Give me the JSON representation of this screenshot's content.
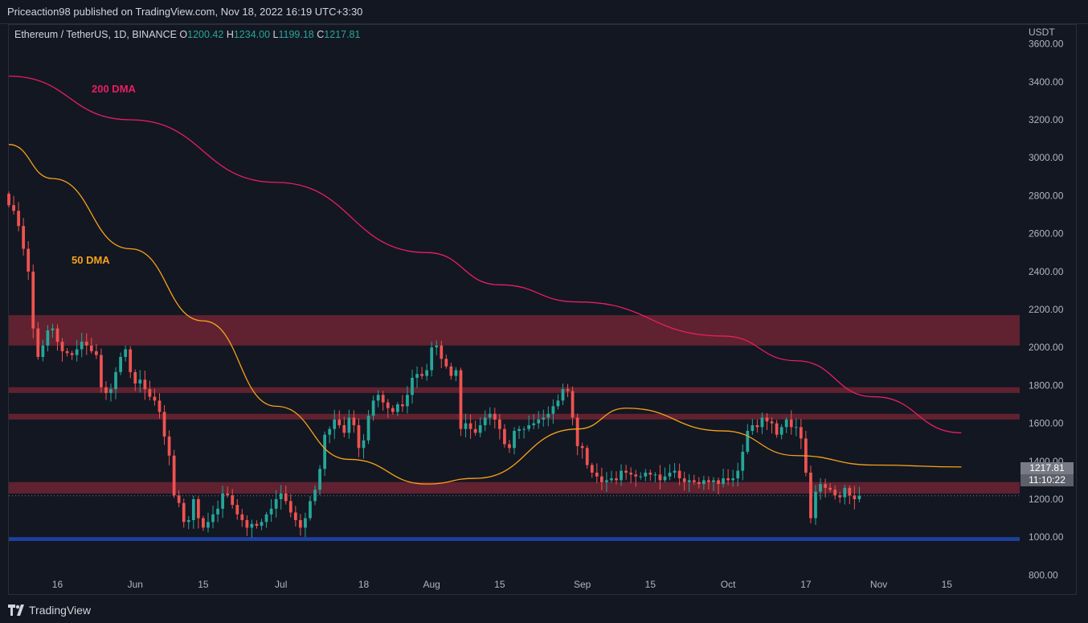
{
  "header": {
    "published_by": "Priceaction98 published on TradingView.com, Nov 18, 2022 16:19 UTC+3:30"
  },
  "legend": {
    "symbol": "Ethereum / TetherUS, 1D, BINANCE",
    "open_label": "O",
    "open": "1200.42",
    "high_label": "H",
    "high": "1234.00",
    "low_label": "L",
    "low": "1199.18",
    "close_label": "C",
    "close": "1217.81"
  },
  "indicators": {
    "dma200_label": "200 DMA",
    "dma50_label": "50 DMA"
  },
  "price_tag": {
    "price": "1217.81",
    "countdown": "11:10:22"
  },
  "footer": {
    "brand": "TradingView"
  },
  "colors": {
    "background": "#131722",
    "up": "#26a69a",
    "down": "#ef5350",
    "dma200": "#e91e63",
    "dma50": "#f7a21b",
    "zone": "#6e2432",
    "support_line": "#2962ff"
  },
  "chart_data": {
    "type": "candlestick",
    "y_unit": "USDT",
    "ylim": [
      700,
      3700
    ],
    "y_ticks": [
      "3600.00",
      "3400.00",
      "3200.00",
      "3000.00",
      "2800.00",
      "2600.00",
      "2400.00",
      "2200.00",
      "2000.00",
      "1800.00",
      "1600.00",
      "1400.00",
      "1200.00",
      "1000.00",
      "800.00"
    ],
    "y_tick_values": [
      3600,
      3400,
      3200,
      3000,
      2800,
      2600,
      2400,
      2200,
      2000,
      1800,
      1600,
      1400,
      1200,
      1000,
      800
    ],
    "x_range": [
      "2022-05-06",
      "2022-11-30"
    ],
    "x_ticks": [
      {
        "date": "2022-05-16",
        "label": "16"
      },
      {
        "date": "2022-06-01",
        "label": "Jun"
      },
      {
        "date": "2022-06-15",
        "label": "15"
      },
      {
        "date": "2022-07-01",
        "label": "Jul"
      },
      {
        "date": "2022-07-18",
        "label": "18"
      },
      {
        "date": "2022-08-01",
        "label": "Aug"
      },
      {
        "date": "2022-08-15",
        "label": "15"
      },
      {
        "date": "2022-09-01",
        "label": "Sep"
      },
      {
        "date": "2022-09-15",
        "label": "15"
      },
      {
        "date": "2022-10-01",
        "label": "Oct"
      },
      {
        "date": "2022-10-17",
        "label": "17"
      },
      {
        "date": "2022-11-01",
        "label": "Nov"
      },
      {
        "date": "2022-11-15",
        "label": "15"
      }
    ],
    "grid": false,
    "close_series": {
      "start_date": "2022-05-06",
      "values": [
        2750,
        2720,
        2640,
        2520,
        2400,
        2100,
        1950,
        2010,
        2090,
        2100,
        2030,
        1980,
        1970,
        1960,
        1990,
        2030,
        2010,
        1980,
        1960,
        1790,
        1760,
        1780,
        1870,
        1950,
        1990,
        1870,
        1810,
        1830,
        1780,
        1740,
        1720,
        1660,
        1530,
        1430,
        1220,
        1180,
        1080,
        1090,
        1200,
        1100,
        1050,
        1080,
        1120,
        1150,
        1230,
        1220,
        1170,
        1120,
        1090,
        1050,
        1070,
        1060,
        1080,
        1120,
        1150,
        1200,
        1230,
        1190,
        1130,
        1090,
        1050,
        1100,
        1190,
        1250,
        1360,
        1540,
        1570,
        1620,
        1590,
        1550,
        1630,
        1590,
        1470,
        1510,
        1640,
        1720,
        1750,
        1710,
        1680,
        1660,
        1700,
        1690,
        1750,
        1840,
        1860,
        1850,
        1880,
        2000,
        2010,
        1940,
        1900,
        1850,
        1880,
        1570,
        1600,
        1570,
        1550,
        1590,
        1630,
        1650,
        1620,
        1570,
        1490,
        1470,
        1560,
        1570,
        1570,
        1590,
        1600,
        1620,
        1630,
        1650,
        1690,
        1720,
        1780,
        1770,
        1630,
        1480,
        1470,
        1380,
        1340,
        1320,
        1290,
        1300,
        1310,
        1300,
        1350,
        1340,
        1330,
        1320,
        1320,
        1340,
        1330,
        1330,
        1300,
        1320,
        1340,
        1350,
        1310,
        1290,
        1300,
        1290,
        1280,
        1300,
        1290,
        1300,
        1280,
        1310,
        1300,
        1310,
        1350,
        1450,
        1560,
        1590,
        1580,
        1630,
        1610,
        1600,
        1540,
        1580,
        1620,
        1580,
        1580,
        1520,
        1340,
        1100,
        1240,
        1280,
        1260,
        1250,
        1220,
        1210,
        1260,
        1220,
        1200,
        1217.81
      ]
    },
    "ma_200": {
      "label": "200 DMA",
      "points": [
        [
          "2022-05-06",
          3430
        ],
        [
          "2022-05-31",
          3200
        ],
        [
          "2022-06-30",
          2870
        ],
        [
          "2022-07-31",
          2500
        ],
        [
          "2022-08-15",
          2330
        ],
        [
          "2022-08-31",
          2240
        ],
        [
          "2022-09-30",
          2060
        ],
        [
          "2022-10-15",
          1930
        ],
        [
          "2022-10-31",
          1740
        ],
        [
          "2022-11-18",
          1550
        ]
      ]
    },
    "ma_50": {
      "label": "50 DMA",
      "points": [
        [
          "2022-05-06",
          3070
        ],
        [
          "2022-05-15",
          2890
        ],
        [
          "2022-05-31",
          2520
        ],
        [
          "2022-06-15",
          2140
        ],
        [
          "2022-06-30",
          1690
        ],
        [
          "2022-07-15",
          1410
        ],
        [
          "2022-07-31",
          1280
        ],
        [
          "2022-08-10",
          1310
        ],
        [
          "2022-08-31",
          1570
        ],
        [
          "2022-09-10",
          1680
        ],
        [
          "2022-09-30",
          1560
        ],
        [
          "2022-10-15",
          1430
        ],
        [
          "2022-10-31",
          1380
        ],
        [
          "2022-11-18",
          1370
        ]
      ]
    },
    "zones": [
      {
        "from": 2010,
        "to": 2170
      },
      {
        "from": 1760,
        "to": 1790
      },
      {
        "from": 1620,
        "to": 1650
      },
      {
        "from": 1230,
        "to": 1290
      }
    ],
    "support_line": {
      "from": 980,
      "to": 1000
    },
    "last_price": 1217.81
  }
}
